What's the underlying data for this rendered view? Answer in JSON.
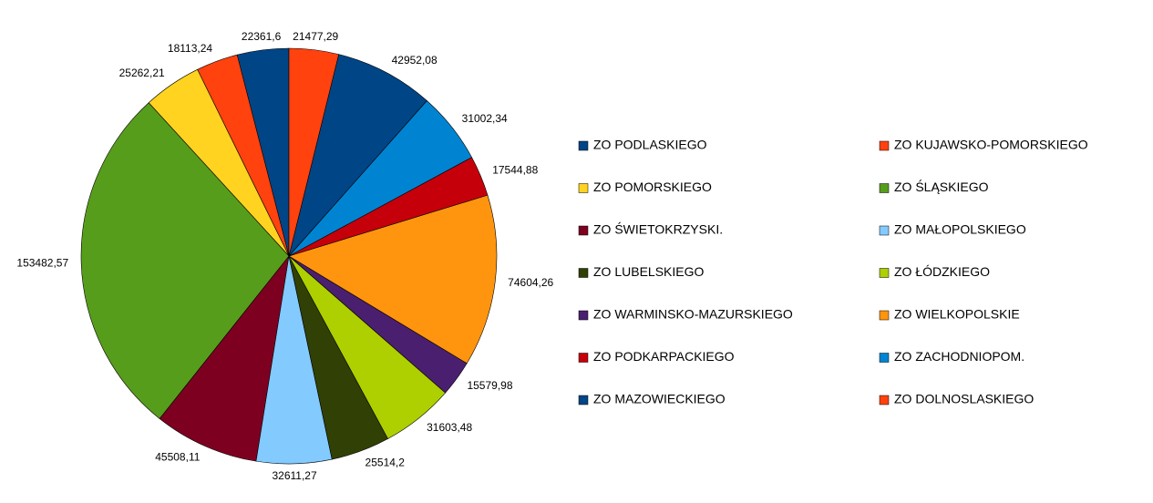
{
  "chart_data": {
    "type": "pie",
    "categories": [
      "ZO PODLASKIEGO",
      "ZO KUJAWSKO-POMORSKIEGO",
      "ZO POMORSKIEGO",
      "ZO ŚLĄSKIEGO",
      "ZO ŚWIETOKRZYSKI.",
      "ZO MAŁOPOLSKIEGO",
      "ZO LUBELSKIEGO",
      "ZO ŁÓDZKIEGO",
      "ZO WARMINSKO-MAZURSKIEGO",
      "ZO WIELKOPOLSKIE",
      "ZO PODKARPACKIEGO",
      "ZO ZACHODNIOPOM.",
      "ZO MAZOWIECKIEGO",
      "ZO DOLNOSLASKIEGO"
    ],
    "values": [
      22361.6,
      18113.24,
      25262.21,
      153482.57,
      45508.11,
      32611.27,
      25514.2,
      31603.48,
      15579.98,
      74604.26,
      17544.88,
      31002.34,
      42952.08,
      21477.29
    ],
    "value_labels": [
      "22361,6",
      "18113,24",
      "25262,21",
      "153482,57",
      "45508,11",
      "32611,27",
      "25514,2",
      "31603,48",
      "15579,98",
      "74604,26",
      "17544,88",
      "31002,34",
      "42952,08",
      "21477,29"
    ],
    "colors": [
      "#004586",
      "#ff420e",
      "#ffd320",
      "#579d1c",
      "#7e0021",
      "#83caff",
      "#314004",
      "#aecf00",
      "#4b1f6f",
      "#ff950e",
      "#c5000b",
      "#0084d1",
      "#004586",
      "#ff420e"
    ]
  }
}
